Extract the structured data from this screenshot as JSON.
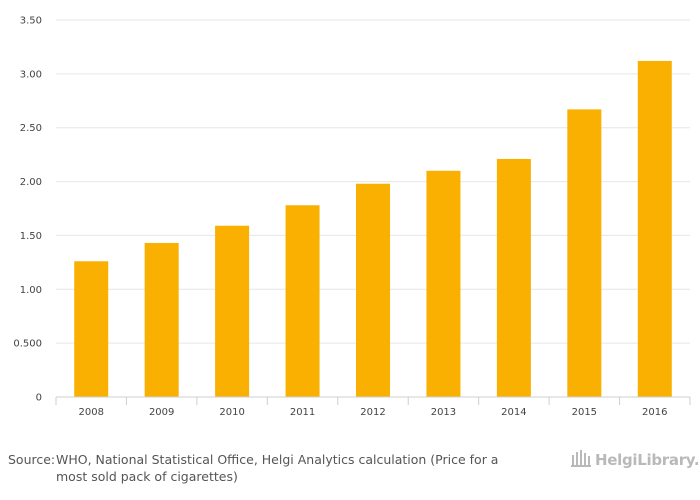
{
  "chart_data": {
    "type": "bar",
    "title": "",
    "xlabel": "",
    "ylabel": "",
    "categories": [
      "2008",
      "2009",
      "2010",
      "2011",
      "2012",
      "2013",
      "2014",
      "2015",
      "2016"
    ],
    "values": [
      1.26,
      1.43,
      1.59,
      1.78,
      1.98,
      2.1,
      2.21,
      2.67,
      3.12
    ],
    "ylim": [
      0,
      3.5
    ],
    "y_ticks": [
      0,
      0.5,
      1.0,
      1.5,
      2.0,
      2.5,
      3.0,
      3.5
    ],
    "y_tick_labels": [
      "0",
      "0.500",
      "1.00",
      "1.50",
      "2.00",
      "2.50",
      "3.00",
      "3.50"
    ],
    "grid": true,
    "legend": "none",
    "bar_color": "#f9b000",
    "grid_color": "#e6e6e6"
  },
  "footer": {
    "source_label": "Source:",
    "source_line1": "WHO, National Statistical Office, Helgi Analytics calculation (Price for a",
    "source_line2": "most sold pack of cigarettes)"
  },
  "brand": {
    "name": "HelgiLibrary.",
    "icon": "library-building-icon"
  }
}
